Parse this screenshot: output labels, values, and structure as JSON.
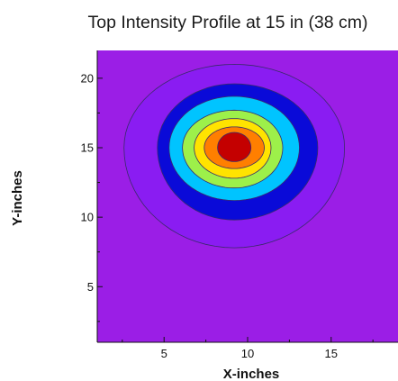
{
  "chart_data": {
    "type": "heatmap",
    "subtype": "filled-contour",
    "title": "Top Intensity Profile at 15 in (38 cm)",
    "xlabel": "X-inches",
    "ylabel": "Y-inches",
    "xlim": [
      1,
      19
    ],
    "ylim": [
      1,
      22
    ],
    "x_ticks": [
      5,
      10,
      15
    ],
    "y_ticks": [
      5,
      10,
      15,
      20
    ],
    "grid": false,
    "background_level_color": "#9b1ee6",
    "center": {
      "x": 9.2,
      "y": 15.0
    },
    "contour_levels": [
      {
        "level": 1,
        "color": "#8a1cf2",
        "radii": {
          "right": 6.6,
          "left": 6.6,
          "up": 6.0,
          "down": 7.2
        }
      },
      {
        "level": 2,
        "color": "#0a0ad8",
        "radii": {
          "right": 5.0,
          "left": 4.6,
          "up": 4.6,
          "down": 5.2
        }
      },
      {
        "level": 3,
        "color": "#00c4ff",
        "radii": {
          "right": 3.9,
          "left": 3.9,
          "up": 3.7,
          "down": 3.8
        }
      },
      {
        "level": 4,
        "color": "#9df04a",
        "radii": {
          "right": 2.9,
          "left": 3.1,
          "up": 2.7,
          "down": 2.9
        }
      },
      {
        "level": 5,
        "color": "#ffe300",
        "radii": {
          "right": 2.2,
          "left": 2.4,
          "up": 2.1,
          "down": 2.2
        }
      },
      {
        "level": 6,
        "color": "#ff7f00",
        "radii": {
          "right": 1.8,
          "left": 1.8,
          "up": 1.5,
          "down": 1.5
        }
      },
      {
        "level": 7,
        "color": "#c40000",
        "radii": {
          "right": 1.0,
          "left": 1.0,
          "up": 1.1,
          "down": 1.0
        }
      }
    ]
  }
}
